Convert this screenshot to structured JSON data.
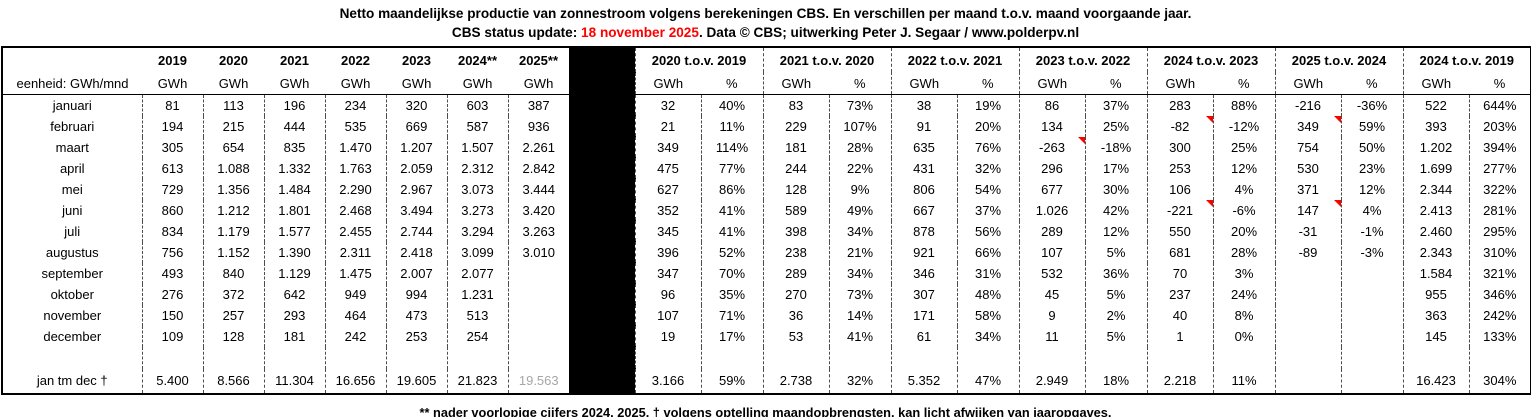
{
  "title": "Netto maandelijkse productie van zonnestroom volgens berekeningen CBS. En verschillen per maand t.o.v. maand voorgaande jaar.",
  "subtitle": {
    "prefix": "CBS status update: ",
    "date": "18 november 2025",
    "suffix": ". Data © CBS; uitwerking Peter J. Segaar / www.polderpv.nl"
  },
  "footnote": "** nader voorlopige cijfers 2024, 2025.  † volgens optelling maandopbrengsten, kan licht afwijken van jaaropgaves.",
  "colors": {
    "accent_red": "#ff0000",
    "marker_red": "#ff0000",
    "provisional_gray": "#a6a6a6",
    "separator_black": "#000000"
  },
  "table": {
    "unit_label": "eenheid: GWh/mnd",
    "year_unit": "GWh",
    "year_columns": [
      "2019",
      "2020",
      "2021",
      "2022",
      "2023",
      "2024**",
      "2025**"
    ],
    "comparison_columns": [
      "2020 t.o.v. 2019",
      "2021 t.o.v. 2020",
      "2022 t.o.v. 2021",
      "2023 t.o.v. 2022",
      "2024 t.o.v. 2023",
      "2025 t.o.v. 2024",
      "2024 t.o.v. 2019"
    ],
    "comparison_units": [
      "GWh",
      "%"
    ],
    "rows": [
      {
        "label": "januari",
        "values": [
          "81",
          "113",
          "196",
          "234",
          "320",
          "603",
          "387"
        ],
        "comparisons": [
          [
            "32",
            "40%"
          ],
          [
            "83",
            "73%"
          ],
          [
            "38",
            "19%"
          ],
          [
            "86",
            "37%"
          ],
          [
            "283",
            "88%"
          ],
          [
            "-216",
            "-36%"
          ],
          [
            "522",
            "644%"
          ]
        ]
      },
      {
        "label": "februari",
        "values": [
          "194",
          "215",
          "444",
          "535",
          "669",
          "587",
          "936"
        ],
        "comparisons": [
          [
            "21",
            "11%"
          ],
          [
            "229",
            "107%"
          ],
          [
            "91",
            "20%"
          ],
          [
            "134",
            "25%"
          ],
          [
            "-82",
            "-12%"
          ],
          [
            "349",
            "59%"
          ],
          [
            "393",
            "203%"
          ]
        ]
      },
      {
        "label": "maart",
        "values": [
          "305",
          "654",
          "835",
          "1.470",
          "1.207",
          "1.507",
          "2.261"
        ],
        "comparisons": [
          [
            "349",
            "114%"
          ],
          [
            "181",
            "28%"
          ],
          [
            "635",
            "76%"
          ],
          [
            "-263",
            "-18%"
          ],
          [
            "300",
            "25%"
          ],
          [
            "754",
            "50%"
          ],
          [
            "1.202",
            "394%"
          ]
        ]
      },
      {
        "label": "april",
        "values": [
          "613",
          "1.088",
          "1.332",
          "1.763",
          "2.059",
          "2.312",
          "2.842"
        ],
        "comparisons": [
          [
            "475",
            "77%"
          ],
          [
            "244",
            "22%"
          ],
          [
            "431",
            "32%"
          ],
          [
            "296",
            "17%"
          ],
          [
            "253",
            "12%"
          ],
          [
            "530",
            "23%"
          ],
          [
            "1.699",
            "277%"
          ]
        ]
      },
      {
        "label": "mei",
        "values": [
          "729",
          "1.356",
          "1.484",
          "2.290",
          "2.967",
          "3.073",
          "3.444"
        ],
        "comparisons": [
          [
            "627",
            "86%"
          ],
          [
            "128",
            "9%"
          ],
          [
            "806",
            "54%"
          ],
          [
            "677",
            "30%"
          ],
          [
            "106",
            "4%"
          ],
          [
            "371",
            "12%"
          ],
          [
            "2.344",
            "322%"
          ]
        ]
      },
      {
        "label": "juni",
        "values": [
          "860",
          "1.212",
          "1.801",
          "2.468",
          "3.494",
          "3.273",
          "3.420"
        ],
        "comparisons": [
          [
            "352",
            "41%"
          ],
          [
            "589",
            "49%"
          ],
          [
            "667",
            "37%"
          ],
          [
            "1.026",
            "42%"
          ],
          [
            "-221",
            "-6%"
          ],
          [
            "147",
            "4%"
          ],
          [
            "2.413",
            "281%"
          ]
        ]
      },
      {
        "label": "juli",
        "values": [
          "834",
          "1.179",
          "1.577",
          "2.455",
          "2.744",
          "3.294",
          "3.263"
        ],
        "comparisons": [
          [
            "345",
            "41%"
          ],
          [
            "398",
            "34%"
          ],
          [
            "878",
            "56%"
          ],
          [
            "289",
            "12%"
          ],
          [
            "550",
            "20%"
          ],
          [
            "-31",
            "-1%"
          ],
          [
            "2.460",
            "295%"
          ]
        ]
      },
      {
        "label": "augustus",
        "values": [
          "756",
          "1.152",
          "1.390",
          "2.311",
          "2.418",
          "3.099",
          "3.010"
        ],
        "comparisons": [
          [
            "396",
            "52%"
          ],
          [
            "238",
            "21%"
          ],
          [
            "921",
            "66%"
          ],
          [
            "107",
            "5%"
          ],
          [
            "681",
            "28%"
          ],
          [
            "-89",
            "-3%"
          ],
          [
            "2.343",
            "310%"
          ]
        ]
      },
      {
        "label": "september",
        "values": [
          "493",
          "840",
          "1.129",
          "1.475",
          "2.007",
          "2.077",
          ""
        ],
        "comparisons": [
          [
            "347",
            "70%"
          ],
          [
            "289",
            "34%"
          ],
          [
            "346",
            "31%"
          ],
          [
            "532",
            "36%"
          ],
          [
            "70",
            "3%"
          ],
          [
            "",
            ""
          ],
          [
            "1.584",
            "321%"
          ]
        ]
      },
      {
        "label": "oktober",
        "values": [
          "276",
          "372",
          "642",
          "949",
          "994",
          "1.231",
          ""
        ],
        "comparisons": [
          [
            "96",
            "35%"
          ],
          [
            "270",
            "73%"
          ],
          [
            "307",
            "48%"
          ],
          [
            "45",
            "5%"
          ],
          [
            "237",
            "24%"
          ],
          [
            "",
            ""
          ],
          [
            "955",
            "346%"
          ]
        ]
      },
      {
        "label": "november",
        "values": [
          "150",
          "257",
          "293",
          "464",
          "473",
          "513",
          ""
        ],
        "comparisons": [
          [
            "107",
            "71%"
          ],
          [
            "36",
            "14%"
          ],
          [
            "171",
            "58%"
          ],
          [
            "9",
            "2%"
          ],
          [
            "40",
            "8%"
          ],
          [
            "",
            ""
          ],
          [
            "363",
            "242%"
          ]
        ]
      },
      {
        "label": "december",
        "values": [
          "109",
          "128",
          "181",
          "242",
          "253",
          "254",
          ""
        ],
        "comparisons": [
          [
            "19",
            "17%"
          ],
          [
            "53",
            "41%"
          ],
          [
            "61",
            "34%"
          ],
          [
            "11",
            "5%"
          ],
          [
            "1",
            "0%"
          ],
          [
            "",
            ""
          ],
          [
            "145",
            "133%"
          ]
        ]
      }
    ],
    "total_row": {
      "label": "jan tm dec †",
      "values": [
        "5.400",
        "8.566",
        "11.304",
        "16.656",
        "19.605",
        "21.823",
        "19.563"
      ],
      "provisional_gray_value_index": 6,
      "comparisons": [
        [
          "3.166",
          "59%"
        ],
        [
          "2.738",
          "32%"
        ],
        [
          "5.352",
          "47%"
        ],
        [
          "2.949",
          "18%"
        ],
        [
          "2.218",
          "11%"
        ],
        [
          "",
          ""
        ],
        [
          "16.423",
          "304%"
        ]
      ]
    },
    "comment_markers": [
      {
        "month": "februari",
        "column": "2024 t.o.v. 2023",
        "row": 1,
        "comp": 4
      },
      {
        "month": "februari",
        "column": "2025 t.o.v. 2024",
        "row": 1,
        "comp": 5
      },
      {
        "month": "maart",
        "column": "2023 t.o.v. 2022",
        "row": 2,
        "comp": 3
      },
      {
        "month": "juni",
        "column": "2024 t.o.v. 2023",
        "row": 5,
        "comp": 4
      },
      {
        "month": "juni",
        "column": "2025 t.o.v. 2024",
        "row": 5,
        "comp": 5
      }
    ]
  }
}
